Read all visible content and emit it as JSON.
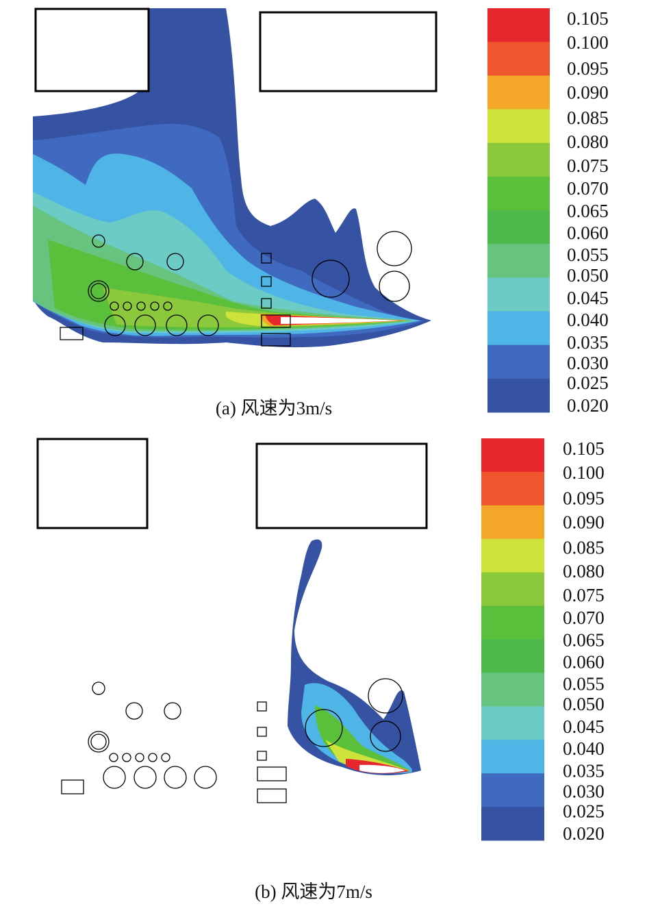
{
  "panels": [
    {
      "caption": "(a) 风速为3m/s",
      "colorbar_labels": [
        "0.105",
        "0.100",
        "0.095",
        "0.090",
        "0.085",
        "0.080",
        "0.075",
        "0.070",
        "0.065",
        "0.060",
        "0.055",
        "0.050",
        "0.045",
        "0.040",
        "0.035",
        "0.030",
        "0.025",
        "0.020"
      ]
    },
    {
      "caption": "(b) 风速为7m/s",
      "colorbar_labels": [
        "0.105",
        "0.100",
        "0.095",
        "0.090",
        "0.085",
        "0.080",
        "0.075",
        "0.070",
        "0.065",
        "0.060",
        "0.055",
        "0.050",
        "0.045",
        "0.040",
        "0.035",
        "0.030",
        "0.025",
        "0.020"
      ]
    }
  ]
}
